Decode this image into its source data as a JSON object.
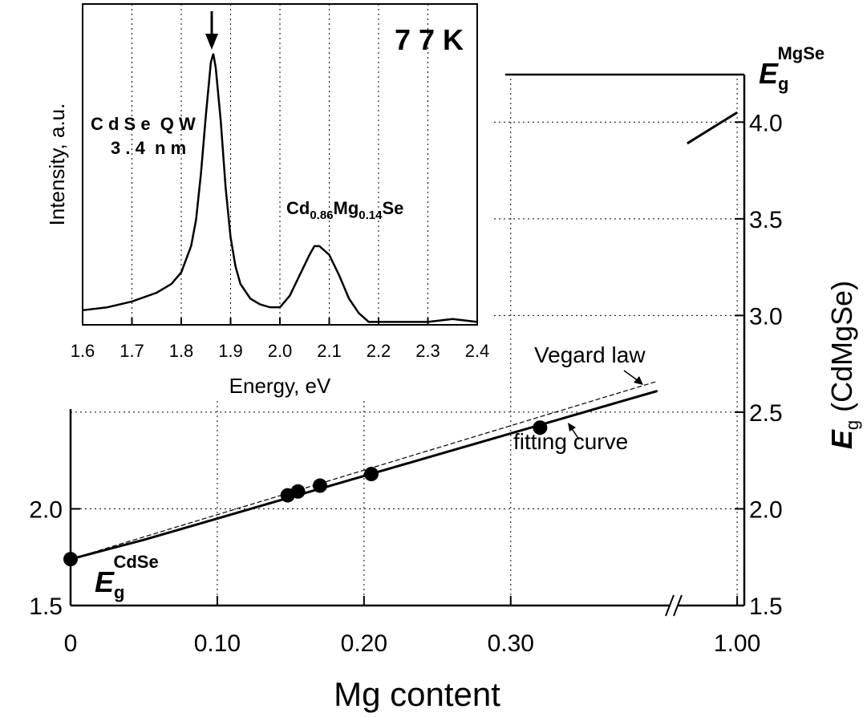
{
  "chart_data": [
    {
      "type": "line",
      "x_label": "Mg content",
      "y_label": {
        "symbol": "E",
        "subscript": "g",
        "text": "(CdMgSe)"
      },
      "xlim": [
        0,
        1.01
      ],
      "axis_break": [
        0.41,
        0.92
      ],
      "xticks": [
        0,
        {
          "value": 0.1,
          "label": "0.10"
        },
        {
          "value": 0.2,
          "label": "0.20"
        },
        {
          "value": 0.3,
          "label": "0.30"
        },
        {
          "value": 1,
          "label": "1.00"
        }
      ],
      "ylim": [
        1.5,
        4.25
      ],
      "yticks": [
        1.5,
        {
          "value": 2,
          "label": "2.0"
        },
        2.5,
        {
          "value": 3,
          "label": "3.0"
        },
        3.5,
        {
          "value": 4,
          "label": "4.0"
        }
      ],
      "yticks_left": [
        1.5,
        {
          "value": 2,
          "label": "2.0"
        }
      ],
      "grid": true,
      "series": [
        {
          "style": "solid",
          "color": "#000000",
          "x": [
            0,
            0.05,
            0.1,
            0.15,
            0.2,
            0.25,
            0.3,
            0.35,
            0.4,
            0.93,
            1.0
          ],
          "values": [
            1.74,
            1.84,
            1.95,
            2.06,
            2.17,
            2.28,
            2.39,
            2.5,
            2.61,
            3.89,
            4.05
          ]
        },
        {
          "style": "dashed",
          "color": "#000000",
          "x": [
            0,
            0.4,
            0.93,
            1.0
          ],
          "values": [
            1.74,
            2.66,
            3.89,
            4.05
          ]
        },
        {
          "style": "points",
          "color": "#000000",
          "x": [
            0,
            0.148,
            0.155,
            0.17,
            0.205,
            0.32
          ],
          "values": [
            1.74,
            2.07,
            2.09,
            2.12,
            2.18,
            2.42
          ]
        }
      ],
      "annotations": [
        "Vegard law",
        "fitting curve"
      ],
      "cdse_label": {
        "symbol": "E",
        "subscript": "g",
        "superscript": "CdSe"
      },
      "mgse_label": {
        "symbol": "E",
        "subscript": "g",
        "superscript": "MgSe"
      }
    },
    {
      "type": "line",
      "x_label": "Energy, eV",
      "y_label": "Intensity, a.u.",
      "xlim": [
        1.6,
        2.4
      ],
      "xticks": [
        1.6,
        1.7,
        1.8,
        1.9,
        {
          "value": 2,
          "label": "2.0"
        },
        2.1,
        2.2,
        2.3,
        2.4
      ],
      "ylim": [
        0,
        1.1
      ],
      "series": [
        {
          "style": "solid",
          "color": "#000000",
          "x": [
            1.6,
            1.65,
            1.7,
            1.75,
            1.78,
            1.8,
            1.82,
            1.83,
            1.84,
            1.85,
            1.86,
            1.865,
            1.87,
            1.88,
            1.89,
            1.9,
            1.91,
            1.92,
            1.94,
            1.96,
            1.98,
            2.0,
            2.02,
            2.04,
            2.06,
            2.07,
            2.08,
            2.1,
            2.12,
            2.14,
            2.16,
            2.18,
            2.2,
            2.25,
            2.3,
            2.35,
            2.4
          ],
          "values": [
            0.05,
            0.06,
            0.08,
            0.11,
            0.14,
            0.18,
            0.27,
            0.36,
            0.52,
            0.72,
            0.9,
            0.93,
            0.88,
            0.7,
            0.47,
            0.3,
            0.2,
            0.14,
            0.09,
            0.07,
            0.06,
            0.06,
            0.1,
            0.17,
            0.24,
            0.27,
            0.27,
            0.24,
            0.17,
            0.09,
            0.04,
            0.01,
            0.01,
            0.01,
            0.01,
            0.02,
            0.01
          ]
        }
      ],
      "temperature": "7 7 K",
      "qw_label": "C d S e  Q W",
      "qw_width": "3 . 4  n m",
      "alloy_label": {
        "parts": [
          "Cd",
          "0.86",
          "Mg",
          "0.14",
          "Se"
        ]
      }
    }
  ]
}
